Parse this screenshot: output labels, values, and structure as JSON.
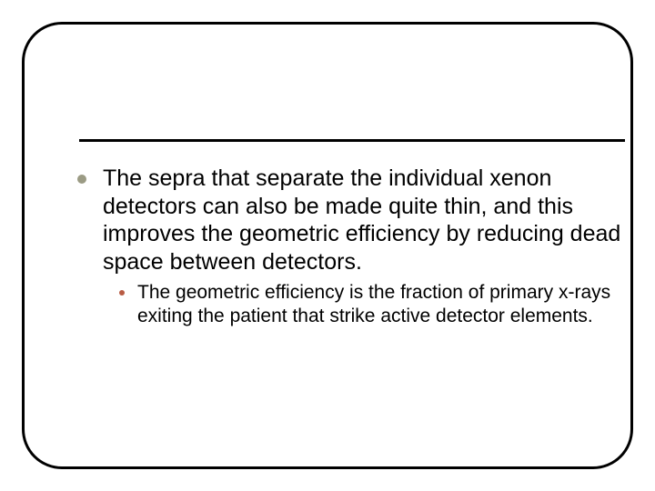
{
  "slide": {
    "border_color": "#000000",
    "border_width": 3,
    "border_radius": 44,
    "background": "#ffffff",
    "rule_color": "#000000",
    "rule_width": 3
  },
  "bullets": {
    "main": {
      "marker_color": "#9b9b84",
      "marker_size": 10,
      "font_size": 25,
      "text_color": "#000000",
      "text": "The sepra that separate the individual xenon detectors can also be made quite thin, and this improves the geometric efficiency by reducing dead space between detectors."
    },
    "sub": {
      "marker_color": "#b85c44",
      "marker_size": 6,
      "font_size": 21,
      "text_color": "#000000",
      "text": "The geometric efficiency is the fraction of primary x-rays exiting the patient that strike active detector elements."
    }
  }
}
